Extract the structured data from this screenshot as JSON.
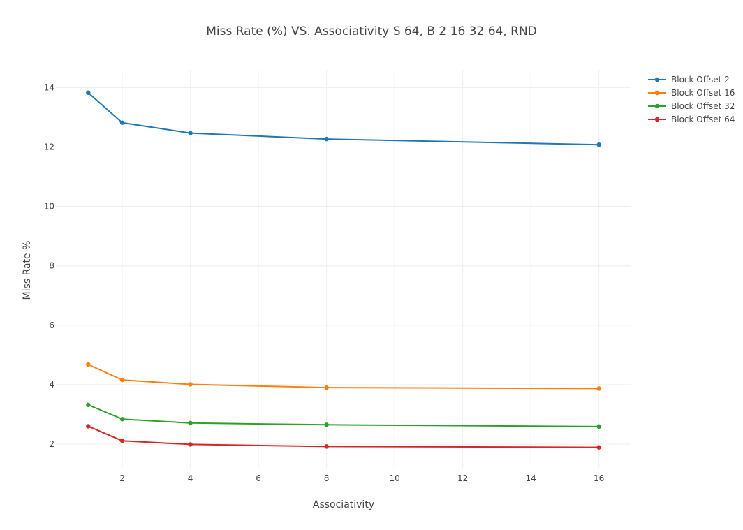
{
  "chart_data": {
    "type": "line",
    "title": "Miss Rate (%) VS. Associativity S 64, B 2 16 32 64, RND",
    "xlabel": "Associativity",
    "ylabel": "Miss Rate %",
    "x": [
      1,
      2,
      4,
      8,
      16
    ],
    "xlim": [
      0.05,
      16.95
    ],
    "ylim": [
      1.2,
      14.6
    ],
    "xticks": [
      2,
      4,
      6,
      8,
      10,
      12,
      14,
      16
    ],
    "yticks": [
      2,
      4,
      6,
      8,
      10,
      12,
      14
    ],
    "grid": true,
    "legend_position": "top-right",
    "series": [
      {
        "name": "Block Offset 2",
        "color": "#1f77b4",
        "values": [
          13.83,
          12.82,
          12.47,
          12.27,
          12.08
        ]
      },
      {
        "name": "Block Offset 16",
        "color": "#ff7f0e",
        "values": [
          4.68,
          4.16,
          4.01,
          3.9,
          3.87
        ]
      },
      {
        "name": "Block Offset 32",
        "color": "#2ca02c",
        "values": [
          3.32,
          2.84,
          2.71,
          2.65,
          2.59
        ]
      },
      {
        "name": "Block Offset 64",
        "color": "#d62728",
        "values": [
          2.6,
          2.11,
          1.99,
          1.92,
          1.89
        ]
      }
    ]
  }
}
